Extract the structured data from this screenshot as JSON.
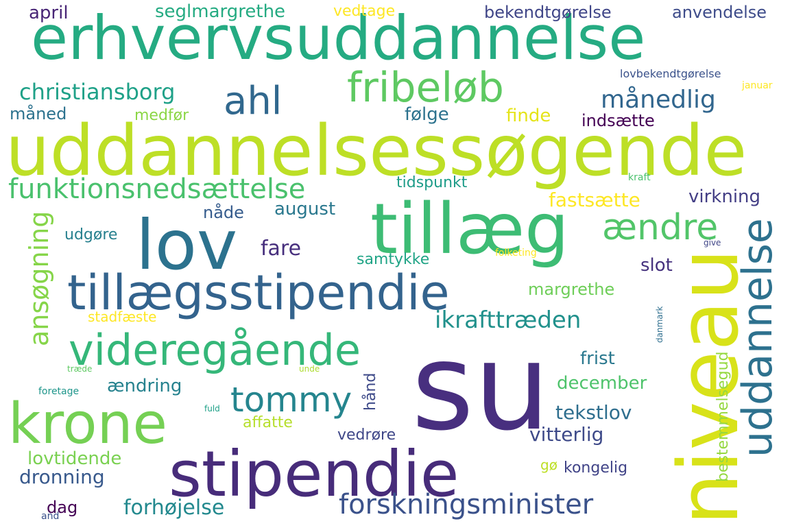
{
  "words": [
    {
      "text": "uddannelsessøgende",
      "color": "#bddf26"
    },
    {
      "text": "erhvervsuddannelse",
      "color": "#25ab82"
    },
    {
      "text": "su",
      "color": "#482f7f"
    },
    {
      "text": "niveau",
      "color": "#d8e219"
    },
    {
      "text": "tillæg",
      "color": "#3dbc74"
    },
    {
      "text": "lov",
      "color": "#2c728e"
    },
    {
      "text": "stipendie",
      "color": "#472c7a"
    },
    {
      "text": "tillægsstipendie",
      "color": "#33638d"
    },
    {
      "text": "uddannelse",
      "color": "#2d718e"
    },
    {
      "text": "krone",
      "color": "#75d054"
    },
    {
      "text": "videregående",
      "color": "#35b779"
    },
    {
      "text": "fribeløb",
      "color": "#5ec962"
    },
    {
      "text": "ændre",
      "color": "#52c569"
    },
    {
      "text": "ahl",
      "color": "#31688e"
    },
    {
      "text": "tommy",
      "color": "#25858e"
    },
    {
      "text": "forskningsminister",
      "color": "#3b528b"
    },
    {
      "text": "funktionsnedsættelse",
      "color": "#4ac16d"
    },
    {
      "text": "ansøgning",
      "color": "#86d549"
    },
    {
      "text": "christiansborg",
      "color": "#1fa188"
    },
    {
      "text": "ikrafttræden",
      "color": "#21918c"
    },
    {
      "text": "månedlig",
      "color": "#31668e"
    },
    {
      "text": "forhøjelse",
      "color": "#23898e"
    },
    {
      "text": "dronning",
      "color": "#38598c"
    },
    {
      "text": "lovtidende",
      "color": "#7ad151"
    },
    {
      "text": "ændring",
      "color": "#26828e"
    },
    {
      "text": "vitterlig",
      "color": "#3e4a89"
    },
    {
      "text": "tekstlov",
      "color": "#2e6e8e"
    },
    {
      "text": "december",
      "color": "#4ec36b"
    },
    {
      "text": "frist",
      "color": "#2a788e"
    },
    {
      "text": "bestemmelsegud",
      "color": "#95d840"
    },
    {
      "text": "margrethe",
      "color": "#6ece58"
    },
    {
      "text": "samtykke",
      "color": "#20a486"
    },
    {
      "text": "slot",
      "color": "#46327e"
    },
    {
      "text": "fare",
      "color": "#472f7d"
    },
    {
      "text": "august",
      "color": "#2a788e"
    },
    {
      "text": "nåde",
      "color": "#365c8d"
    },
    {
      "text": "udgøre",
      "color": "#27808e"
    },
    {
      "text": "fastsætte",
      "color": "#fde725"
    },
    {
      "text": "virkning",
      "color": "#433e85"
    },
    {
      "text": "tidspunkt",
      "color": "#1e9c89"
    },
    {
      "text": "følge",
      "color": "#2c728e"
    },
    {
      "text": "finde",
      "color": "#e5e419"
    },
    {
      "text": "indsætte",
      "color": "#440154"
    },
    {
      "text": "medfør",
      "color": "#8bd646"
    },
    {
      "text": "måned",
      "color": "#2c728e"
    },
    {
      "text": "april",
      "color": "#482576"
    },
    {
      "text": "seglmargrethe",
      "color": "#25ab82"
    },
    {
      "text": "vedtage",
      "color": "#fde725"
    },
    {
      "text": "bekendtgørelse",
      "color": "#404688"
    },
    {
      "text": "anvendelse",
      "color": "#3e4c8a"
    },
    {
      "text": "lovbekendtgørelse",
      "color": "#3b528b"
    },
    {
      "text": "januar",
      "color": "#fde725"
    },
    {
      "text": "stadfæste",
      "color": "#fde725"
    },
    {
      "text": "affatte",
      "color": "#b5de2b"
    },
    {
      "text": "vedrøre",
      "color": "#3f4788"
    },
    {
      "text": "hånd",
      "color": "#3e4a89"
    },
    {
      "text": "kongelig",
      "color": "#404387"
    },
    {
      "text": "gø",
      "color": "#bddf26"
    },
    {
      "text": "dag",
      "color": "#440154"
    },
    {
      "text": "foretage",
      "color": "#1f968b"
    },
    {
      "text": "træde",
      "color": "#5ec962"
    },
    {
      "text": "unde",
      "color": "#addc30"
    },
    {
      "text": "fuld",
      "color": "#1fa188"
    },
    {
      "text": "and",
      "color": "#3b528b"
    },
    {
      "text": "kraft",
      "color": "#4ac16d"
    },
    {
      "text": "give",
      "color": "#404688"
    },
    {
      "text": "folketing",
      "color": "#fde725"
    },
    {
      "text": "danmark",
      "color": "#2e6e8e"
    }
  ]
}
